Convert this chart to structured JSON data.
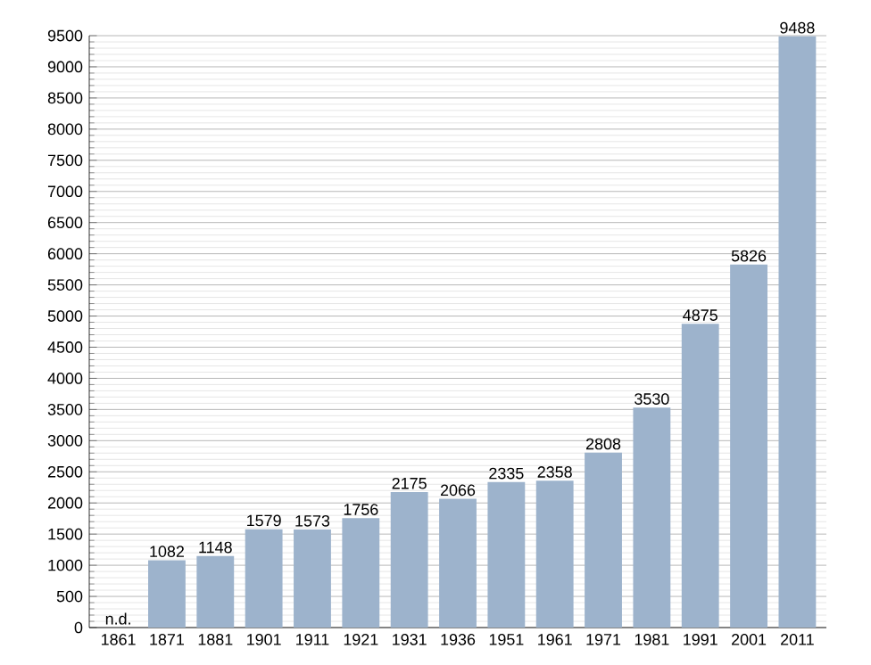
{
  "chart_data": {
    "type": "bar",
    "categories": [
      "1861",
      "1871",
      "1881",
      "1901",
      "1911",
      "1921",
      "1931",
      "1936",
      "1951",
      "1961",
      "1971",
      "1981",
      "1991",
      "2001",
      "2011"
    ],
    "values": [
      null,
      1082,
      1148,
      1579,
      1573,
      1756,
      2175,
      2066,
      2335,
      2358,
      2808,
      3530,
      4875,
      5826,
      9488
    ],
    "value_labels": [
      "n.d.",
      "1082",
      "1148",
      "1579",
      "1573",
      "1756",
      "2175",
      "2066",
      "2335",
      "2358",
      "2808",
      "3530",
      "4875",
      "5826",
      "9488"
    ],
    "color": "#9db3cc",
    "ylim": [
      0,
      9500
    ],
    "yticks": [
      0,
      500,
      1000,
      1500,
      2000,
      2500,
      3000,
      3500,
      4000,
      4500,
      5000,
      5500,
      6000,
      6500,
      7000,
      7500,
      8000,
      8500,
      9000,
      9500
    ],
    "grid": "y"
  }
}
